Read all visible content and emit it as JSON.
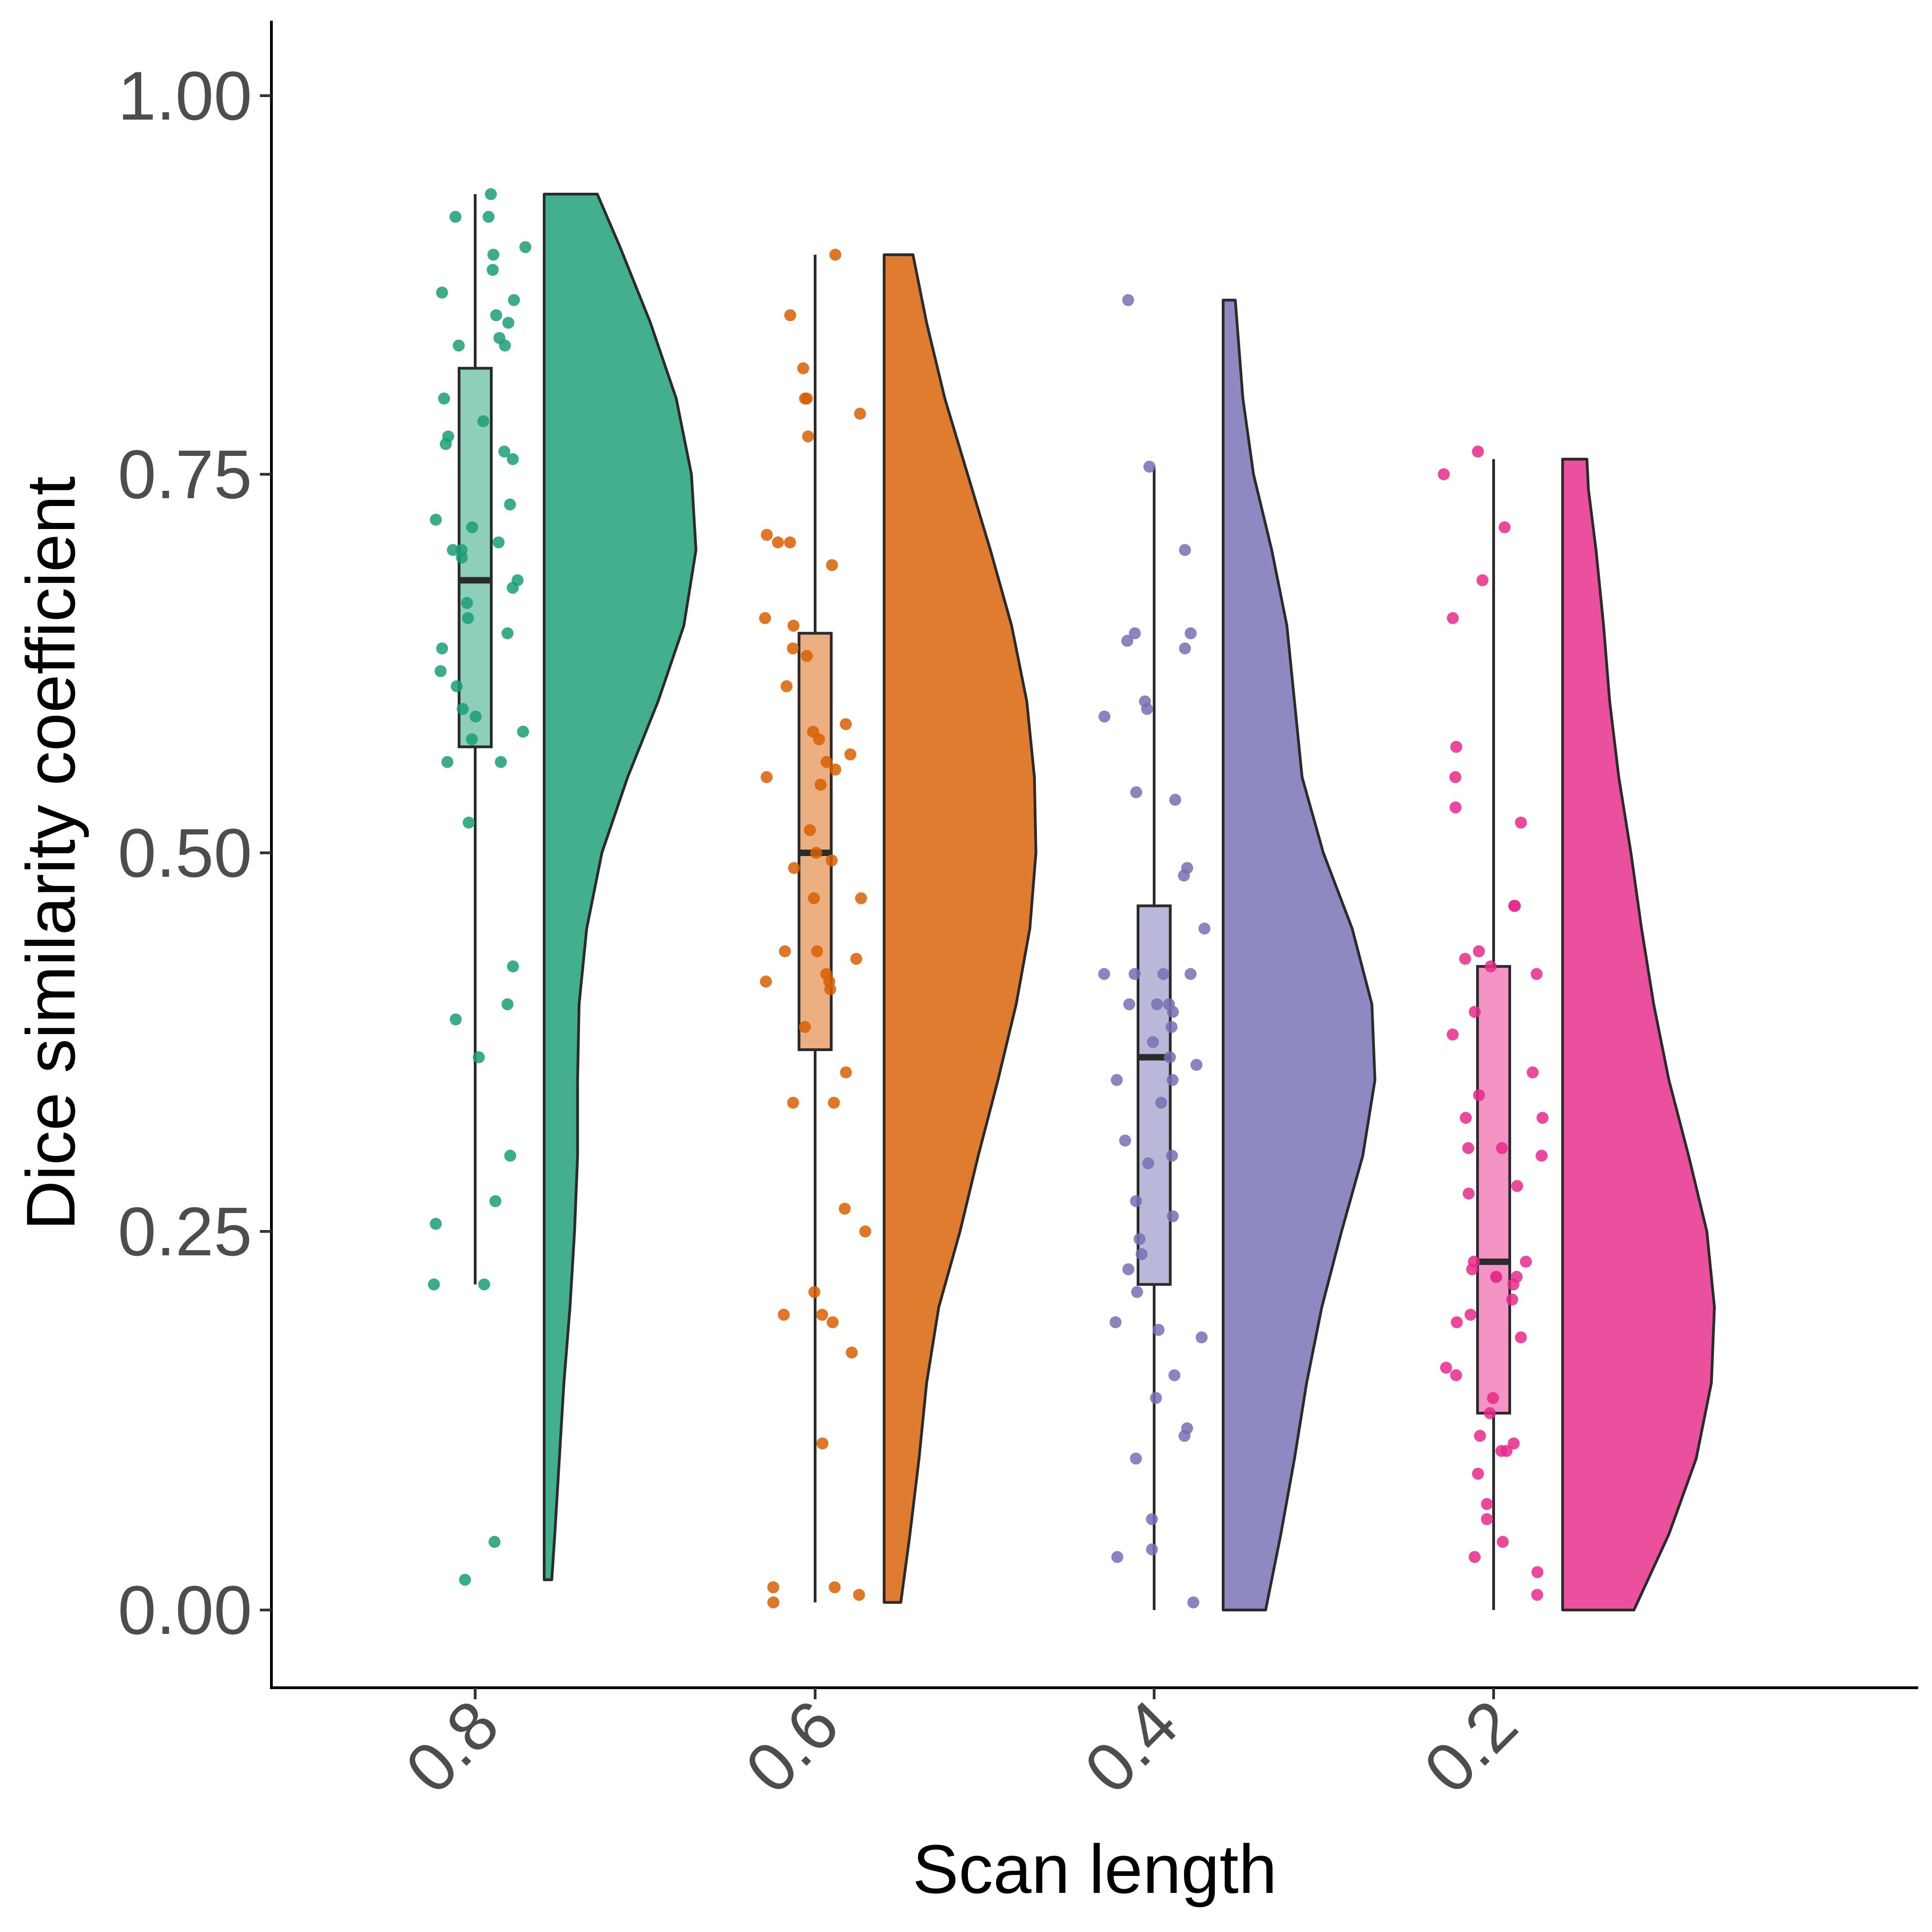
{
  "chart_data": {
    "type": "raincloud",
    "xlabel": "Scan length",
    "ylabel": "Dice similarity coefficient",
    "ylim": [
      -0.05,
      1.05
    ],
    "yticks": [
      "0.00",
      "0.25",
      "0.50",
      "0.75",
      "1.00"
    ],
    "grid": false,
    "legend": "none",
    "groups": [
      {
        "category": "0.8",
        "color": "#1B9E77",
        "box": {
          "min": 0.215,
          "q1": 0.57,
          "median": 0.68,
          "q3": 0.82,
          "max": 0.935
        },
        "density": [
          {
            "y": 0.02,
            "d": 0.05
          },
          {
            "y": 0.05,
            "d": 0.07
          },
          {
            "y": 0.1,
            "d": 0.1
          },
          {
            "y": 0.15,
            "d": 0.13
          },
          {
            "y": 0.2,
            "d": 0.17
          },
          {
            "y": 0.25,
            "d": 0.2
          },
          {
            "y": 0.3,
            "d": 0.22
          },
          {
            "y": 0.35,
            "d": 0.22
          },
          {
            "y": 0.4,
            "d": 0.23
          },
          {
            "y": 0.45,
            "d": 0.28
          },
          {
            "y": 0.5,
            "d": 0.38
          },
          {
            "y": 0.55,
            "d": 0.55
          },
          {
            "y": 0.6,
            "d": 0.75
          },
          {
            "y": 0.65,
            "d": 0.92
          },
          {
            "y": 0.7,
            "d": 1.0
          },
          {
            "y": 0.75,
            "d": 0.97
          },
          {
            "y": 0.8,
            "d": 0.87
          },
          {
            "y": 0.85,
            "d": 0.7
          },
          {
            "y": 0.9,
            "d": 0.5
          },
          {
            "y": 0.935,
            "d": 0.35
          }
        ],
        "points": [
          0.935,
          0.92,
          0.92,
          0.9,
          0.895,
          0.885,
          0.87,
          0.865,
          0.855,
          0.85,
          0.84,
          0.835,
          0.835,
          0.8,
          0.785,
          0.775,
          0.77,
          0.765,
          0.76,
          0.73,
          0.72,
          0.715,
          0.705,
          0.7,
          0.7,
          0.695,
          0.68,
          0.675,
          0.665,
          0.655,
          0.645,
          0.635,
          0.62,
          0.61,
          0.595,
          0.59,
          0.58,
          0.575,
          0.56,
          0.56,
          0.52,
          0.425,
          0.4,
          0.39,
          0.365,
          0.3,
          0.27,
          0.255,
          0.215,
          0.215,
          0.045,
          0.02
        ]
      },
      {
        "category": "0.6",
        "color": "#D95F02",
        "box": {
          "min": 0.005,
          "q1": 0.37,
          "median": 0.5,
          "q3": 0.645,
          "max": 0.895
        },
        "density": [
          {
            "y": 0.005,
            "d": 0.11
          },
          {
            "y": 0.05,
            "d": 0.17
          },
          {
            "y": 0.1,
            "d": 0.23
          },
          {
            "y": 0.15,
            "d": 0.28
          },
          {
            "y": 0.2,
            "d": 0.36
          },
          {
            "y": 0.25,
            "d": 0.5
          },
          {
            "y": 0.3,
            "d": 0.62
          },
          {
            "y": 0.35,
            "d": 0.75
          },
          {
            "y": 0.4,
            "d": 0.87
          },
          {
            "y": 0.45,
            "d": 0.96
          },
          {
            "y": 0.5,
            "d": 1.0
          },
          {
            "y": 0.55,
            "d": 0.99
          },
          {
            "y": 0.6,
            "d": 0.94
          },
          {
            "y": 0.65,
            "d": 0.84
          },
          {
            "y": 0.7,
            "d": 0.7
          },
          {
            "y": 0.75,
            "d": 0.55
          },
          {
            "y": 0.8,
            "d": 0.4
          },
          {
            "y": 0.85,
            "d": 0.28
          },
          {
            "y": 0.895,
            "d": 0.19
          }
        ],
        "points": [
          0.895,
          0.855,
          0.82,
          0.8,
          0.8,
          0.79,
          0.775,
          0.71,
          0.705,
          0.705,
          0.69,
          0.655,
          0.65,
          0.635,
          0.63,
          0.61,
          0.585,
          0.58,
          0.575,
          0.565,
          0.56,
          0.555,
          0.55,
          0.545,
          0.515,
          0.5,
          0.495,
          0.49,
          0.47,
          0.47,
          0.435,
          0.435,
          0.43,
          0.42,
          0.415,
          0.415,
          0.41,
          0.385,
          0.355,
          0.335,
          0.335,
          0.265,
          0.25,
          0.21,
          0.195,
          0.195,
          0.19,
          0.17,
          0.11,
          0.015,
          0.015,
          0.01,
          0.005
        ]
      },
      {
        "category": "0.4",
        "color": "#7570B3",
        "box": {
          "min": 0.0,
          "q1": 0.215,
          "median": 0.365,
          "q3": 0.465,
          "max": 0.755
        },
        "density": [
          {
            "y": 0.0,
            "d": 0.28
          },
          {
            "y": 0.05,
            "d": 0.38
          },
          {
            "y": 0.1,
            "d": 0.47
          },
          {
            "y": 0.15,
            "d": 0.55
          },
          {
            "y": 0.2,
            "d": 0.65
          },
          {
            "y": 0.25,
            "d": 0.78
          },
          {
            "y": 0.3,
            "d": 0.92
          },
          {
            "y": 0.35,
            "d": 1.0
          },
          {
            "y": 0.4,
            "d": 0.98
          },
          {
            "y": 0.45,
            "d": 0.85
          },
          {
            "y": 0.5,
            "d": 0.66
          },
          {
            "y": 0.55,
            "d": 0.52
          },
          {
            "y": 0.6,
            "d": 0.47
          },
          {
            "y": 0.65,
            "d": 0.42
          },
          {
            "y": 0.7,
            "d": 0.32
          },
          {
            "y": 0.75,
            "d": 0.2
          },
          {
            "y": 0.8,
            "d": 0.13
          },
          {
            "y": 0.865,
            "d": 0.08
          }
        ],
        "points": [
          0.865,
          0.755,
          0.7,
          0.645,
          0.645,
          0.64,
          0.635,
          0.6,
          0.595,
          0.59,
          0.54,
          0.535,
          0.49,
          0.485,
          0.45,
          0.42,
          0.42,
          0.42,
          0.42,
          0.4,
          0.4,
          0.4,
          0.395,
          0.385,
          0.375,
          0.365,
          0.36,
          0.35,
          0.35,
          0.335,
          0.31,
          0.3,
          0.295,
          0.27,
          0.26,
          0.245,
          0.235,
          0.225,
          0.21,
          0.19,
          0.185,
          0.18,
          0.155,
          0.14,
          0.12,
          0.115,
          0.1,
          0.06,
          0.04,
          0.035,
          0.005
        ]
      },
      {
        "category": "0.2",
        "color": "#E7298A",
        "box": {
          "min": 0.0,
          "q1": 0.13,
          "median": 0.23,
          "q3": 0.425,
          "max": 0.76
        },
        "density": [
          {
            "y": 0.0,
            "d": 0.47
          },
          {
            "y": 0.05,
            "d": 0.7
          },
          {
            "y": 0.1,
            "d": 0.88
          },
          {
            "y": 0.15,
            "d": 0.98
          },
          {
            "y": 0.2,
            "d": 1.0
          },
          {
            "y": 0.25,
            "d": 0.95
          },
          {
            "y": 0.3,
            "d": 0.83
          },
          {
            "y": 0.35,
            "d": 0.7
          },
          {
            "y": 0.4,
            "d": 0.6
          },
          {
            "y": 0.45,
            "d": 0.52
          },
          {
            "y": 0.5,
            "d": 0.45
          },
          {
            "y": 0.55,
            "d": 0.37
          },
          {
            "y": 0.6,
            "d": 0.31
          },
          {
            "y": 0.65,
            "d": 0.27
          },
          {
            "y": 0.7,
            "d": 0.22
          },
          {
            "y": 0.74,
            "d": 0.17
          },
          {
            "y": 0.76,
            "d": 0.16
          }
        ],
        "points": [
          0.765,
          0.75,
          0.715,
          0.68,
          0.655,
          0.57,
          0.55,
          0.53,
          0.52,
          0.465,
          0.465,
          0.435,
          0.43,
          0.425,
          0.42,
          0.395,
          0.38,
          0.355,
          0.34,
          0.325,
          0.325,
          0.305,
          0.305,
          0.3,
          0.275,
          0.28,
          0.23,
          0.23,
          0.225,
          0.22,
          0.22,
          0.22,
          0.215,
          0.205,
          0.195,
          0.19,
          0.18,
          0.16,
          0.155,
          0.14,
          0.13,
          0.115,
          0.11,
          0.105,
          0.105,
          0.09,
          0.07,
          0.06,
          0.045,
          0.035,
          0.025,
          0.01
        ]
      }
    ]
  }
}
